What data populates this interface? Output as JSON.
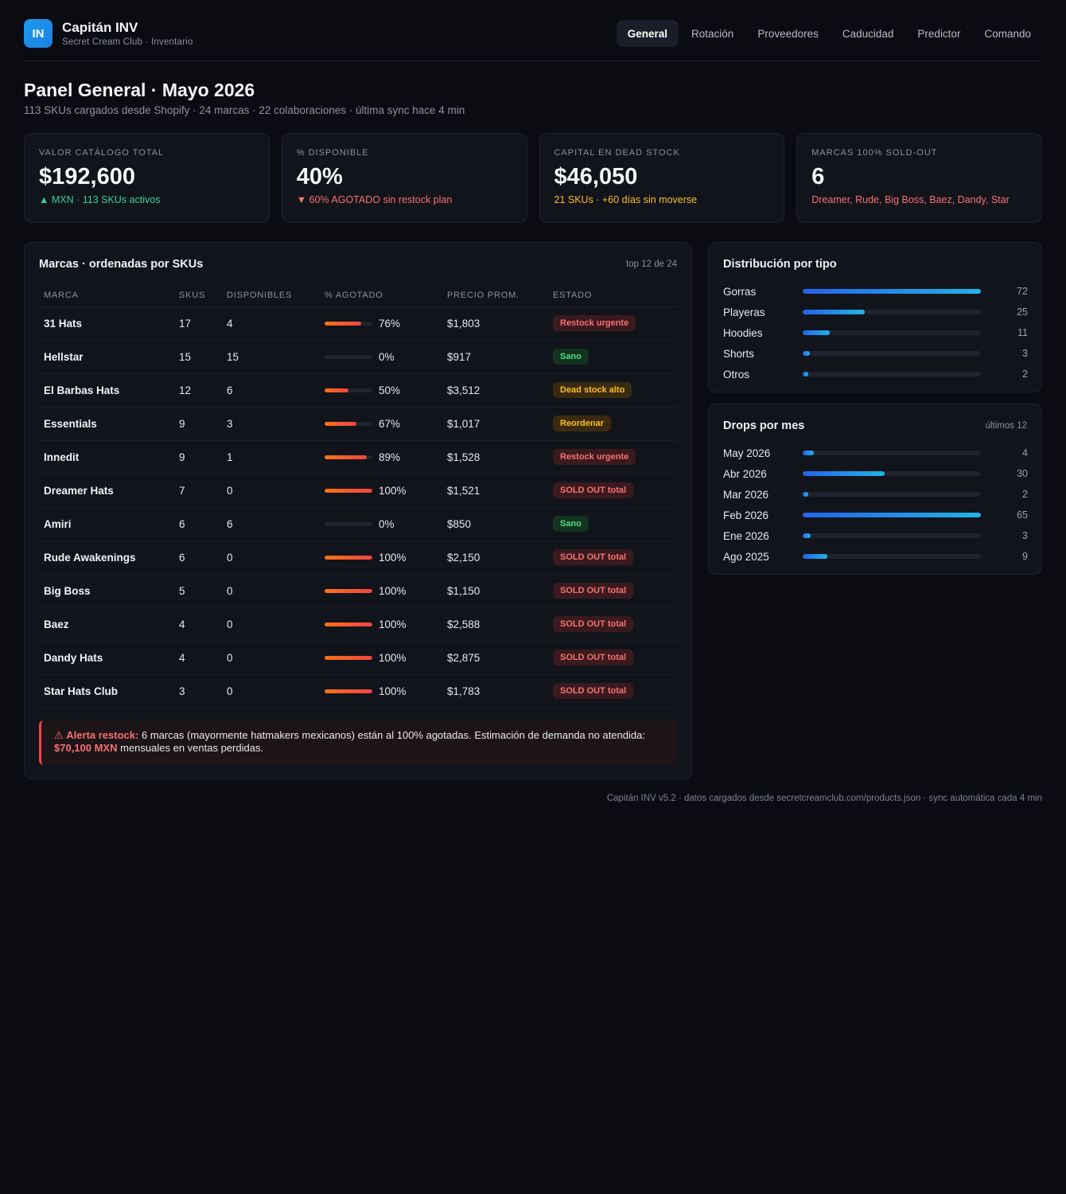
{
  "app": {
    "logo": "IN",
    "title": "Capitán INV",
    "subtitle": "Secret Cream Club · Inventario"
  },
  "nav": {
    "tabs": [
      "General",
      "Rotación",
      "Proveedores",
      "Caducidad",
      "Predictor",
      "Comando"
    ],
    "active": "General"
  },
  "page": {
    "title": "Panel General · Mayo 2026",
    "subtitle": "113 SKUs cargados desde Shopify · 24 marcas · 22 colaboraciones · última sync hace 4 min"
  },
  "kpis": [
    {
      "label": "VALOR CATÁLOGO TOTAL",
      "value": "$192,600",
      "note": "▲ MXN · 113 SKUs activos",
      "tone": "green"
    },
    {
      "label": "% DISPONIBLE",
      "value": "40%",
      "note": "▼ 60% AGOTADO sin restock plan",
      "tone": "red"
    },
    {
      "label": "CAPITAL EN DEAD STOCK",
      "value": "$46,050",
      "note": "21 SKUs · +60 días sin moverse",
      "tone": "amber"
    },
    {
      "label": "MARCAS 100% SOLD-OUT",
      "value": "6",
      "note": "Dreamer, Rude, Big Boss, Baez, Dandy, Star",
      "tone": "rose"
    }
  ],
  "brands": {
    "title": "Marcas · ordenadas por SKUs",
    "meta": "top 12 de 24",
    "columns": [
      "MARCA",
      "SKUS",
      "DISPONIBLES",
      "% AGOTADO",
      "PRECIO PROM.",
      "ESTADO"
    ],
    "rows": [
      {
        "brand": "31 Hats",
        "skus": "17",
        "available": "4",
        "pct": 76,
        "pct_label": "76%",
        "price": "$1,803",
        "status": "Restock urgente",
        "status_tone": "red"
      },
      {
        "brand": "Hellstar",
        "skus": "15",
        "available": "15",
        "pct": 0,
        "pct_label": "0%",
        "price": "$917",
        "status": "Sano",
        "status_tone": "green"
      },
      {
        "brand": "El Barbas Hats",
        "skus": "12",
        "available": "6",
        "pct": 50,
        "pct_label": "50%",
        "price": "$3,512",
        "status": "Dead stock alto",
        "status_tone": "amber"
      },
      {
        "brand": "Essentials",
        "skus": "9",
        "available": "3",
        "pct": 67,
        "pct_label": "67%",
        "price": "$1,017",
        "status": "Reordenar",
        "status_tone": "amber"
      },
      {
        "brand": "Innedit",
        "skus": "9",
        "available": "1",
        "pct": 89,
        "pct_label": "89%",
        "price": "$1,528",
        "status": "Restock urgente",
        "status_tone": "red"
      },
      {
        "brand": "Dreamer Hats",
        "skus": "7",
        "available": "0",
        "pct": 100,
        "pct_label": "100%",
        "price": "$1,521",
        "status": "SOLD OUT total",
        "status_tone": "red"
      },
      {
        "brand": "Amiri",
        "skus": "6",
        "available": "6",
        "pct": 0,
        "pct_label": "0%",
        "price": "$850",
        "status": "Sano",
        "status_tone": "green"
      },
      {
        "brand": "Rude Awakenings",
        "skus": "6",
        "available": "0",
        "pct": 100,
        "pct_label": "100%",
        "price": "$2,150",
        "status": "SOLD OUT total",
        "status_tone": "red"
      },
      {
        "brand": "Big Boss",
        "skus": "5",
        "available": "0",
        "pct": 100,
        "pct_label": "100%",
        "price": "$1,150",
        "status": "SOLD OUT total",
        "status_tone": "red"
      },
      {
        "brand": "Baez",
        "skus": "4",
        "available": "0",
        "pct": 100,
        "pct_label": "100%",
        "price": "$2,588",
        "status": "SOLD OUT total",
        "status_tone": "red"
      },
      {
        "brand": "Dandy Hats",
        "skus": "4",
        "available": "0",
        "pct": 100,
        "pct_label": "100%",
        "price": "$2,875",
        "status": "SOLD OUT total",
        "status_tone": "red"
      },
      {
        "brand": "Star Hats Club",
        "skus": "3",
        "available": "0",
        "pct": 100,
        "pct_label": "100%",
        "price": "$1,783",
        "status": "SOLD OUT total",
        "status_tone": "red"
      }
    ]
  },
  "alert": {
    "icon": "⚠",
    "label": "Alerta restock:",
    "text1": "6 marcas (mayormente hatmakers mexicanos) están al 100% agotadas. Estimación de demanda no atendida:",
    "amount": "$70,100 MXN",
    "text2": "mensuales en ventas perdidas."
  },
  "distribution": {
    "title": "Distribución por tipo",
    "max": 72,
    "items": [
      {
        "label": "Gorras",
        "value": 72
      },
      {
        "label": "Playeras",
        "value": 25
      },
      {
        "label": "Hoodies",
        "value": 11
      },
      {
        "label": "Shorts",
        "value": 3
      },
      {
        "label": "Otros",
        "value": 2
      }
    ]
  },
  "drops": {
    "title": "Drops por mes",
    "meta": "últimos 12",
    "max": 65,
    "items": [
      {
        "label": "May 2026",
        "value": 4
      },
      {
        "label": "Abr 2026",
        "value": 30
      },
      {
        "label": "Mar 2026",
        "value": 2
      },
      {
        "label": "Feb 2026",
        "value": 65
      },
      {
        "label": "Ene 2026",
        "value": 3
      },
      {
        "label": "Ago 2025",
        "value": 9
      }
    ]
  },
  "footer": "Capitán INV v5.2 · datos cargados desde secretcreamclub.com/products.json · sync automática cada 4 min",
  "colors": {
    "accent": "#1e9bf0",
    "danger": "#ef4444",
    "ok": "#4ade80",
    "warn": "#fbbf24"
  }
}
